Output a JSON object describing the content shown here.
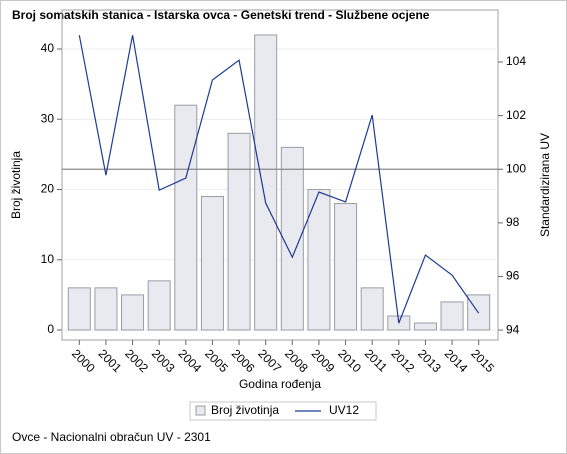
{
  "chart_data": {
    "type": "bar",
    "title": "Broj somatskih stanica - Istarska ovca - Genetski trend - Službene ocjene",
    "footnote": "Ovce - Nacionalni obračun UV - 2301",
    "x_label": "Godina rođenja",
    "y_label": "Broj životinja",
    "y2_label": "Standardizirana UV",
    "categories": [
      "2000",
      "2001",
      "2002",
      "2003",
      "2004",
      "2005",
      "2006",
      "2007",
      "2008",
      "2009",
      "2010",
      "2011",
      "2012",
      "2013",
      "2014",
      "2015"
    ],
    "series": [
      {
        "name": "Broj životinja",
        "type": "bar",
        "color": "#e8eaf0",
        "stroke": "#9a9ca6",
        "values": [
          6,
          6,
          5,
          7,
          32,
          19,
          28,
          42,
          26,
          20,
          18,
          6,
          2,
          1,
          4,
          5
        ]
      },
      {
        "name": "UV12",
        "type": "line",
        "axis": "y2",
        "color": "#1f3a93",
        "values": [
          105.0,
          99.78,
          105.0,
          99.22,
          99.67,
          103.33,
          104.07,
          98.74,
          96.72,
          99.15,
          98.78,
          102.02,
          94.26,
          96.8,
          96.05,
          94.63
        ]
      }
    ],
    "ylim": [
      -1.42,
      45.55
    ],
    "yticks": [
      0,
      10,
      20,
      30,
      40
    ],
    "y2lim": [
      93.63,
      105.94
    ],
    "y2ticks": [
      94,
      96,
      98,
      100,
      102,
      104
    ],
    "reference_line": {
      "value": 100,
      "axis": "y2",
      "color": "#888888"
    },
    "grid": true
  }
}
